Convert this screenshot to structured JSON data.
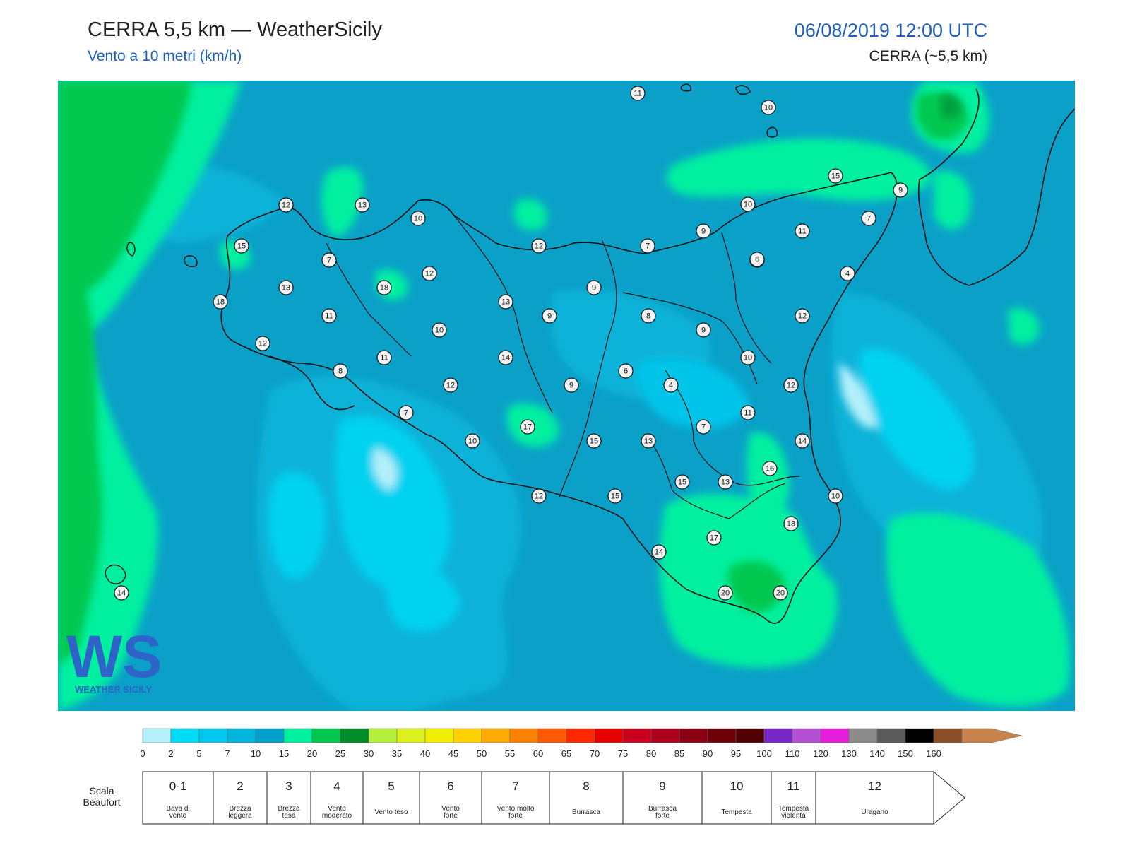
{
  "header": {
    "title": "CERRA 5,5 km — WeatherSicily",
    "subtitle": "Vento a 10 metri (km/h)",
    "datetime": "06/08/2019 12:00 UTC",
    "model": "CERRA (~5,5 km)"
  },
  "logo": {
    "text": "WS",
    "brand": "WEATHER SICILY"
  },
  "colors": {
    "sea_background": "#0aa0c8",
    "c_2_5": "#00d2f0",
    "c_5_7": "#00c4e8",
    "c_7_10": "#08b2d8",
    "c_10_15": "#0aa0c8",
    "c_15_20": "#00f0a0",
    "c_20_25": "#00c850",
    "c_25_30": "#00a03c",
    "coast": "#111111"
  },
  "stations": [
    {
      "value": "11"
    },
    {
      "value": "10"
    },
    {
      "value": "15"
    },
    {
      "value": "9"
    },
    {
      "value": "7"
    },
    {
      "value": "10"
    },
    {
      "value": "13"
    },
    {
      "value": "12"
    },
    {
      "value": "10"
    },
    {
      "value": "9"
    },
    {
      "value": "11"
    },
    {
      "value": "7"
    },
    {
      "value": "15"
    },
    {
      "value": "7"
    },
    {
      "value": "11"
    },
    {
      "value": "12"
    },
    {
      "value": "4"
    },
    {
      "value": "6"
    },
    {
      "value": "13"
    },
    {
      "value": "18"
    },
    {
      "value": "12"
    },
    {
      "value": "9"
    },
    {
      "value": "13"
    },
    {
      "value": "9"
    },
    {
      "value": "8"
    },
    {
      "value": "12"
    },
    {
      "value": "18"
    },
    {
      "value": "11"
    },
    {
      "value": "10"
    },
    {
      "value": "9"
    },
    {
      "value": "12"
    },
    {
      "value": "11"
    },
    {
      "value": "14"
    },
    {
      "value": "6"
    },
    {
      "value": "10"
    },
    {
      "value": "8"
    },
    {
      "value": "12"
    },
    {
      "value": "9"
    },
    {
      "value": "4"
    },
    {
      "value": "12"
    },
    {
      "value": "7"
    },
    {
      "value": "11"
    },
    {
      "value": "17"
    },
    {
      "value": "7"
    },
    {
      "value": "10"
    },
    {
      "value": "15"
    },
    {
      "value": "13"
    },
    {
      "value": "14"
    },
    {
      "value": "16"
    },
    {
      "value": "12"
    },
    {
      "value": "15"
    },
    {
      "value": "15"
    },
    {
      "value": "13"
    },
    {
      "value": "10"
    },
    {
      "value": "18"
    },
    {
      "value": "17"
    },
    {
      "value": "14"
    },
    {
      "value": "14"
    },
    {
      "value": "20"
    },
    {
      "value": "20"
    }
  ],
  "scale": {
    "ticks": [
      "0",
      "2",
      "5",
      "7",
      "10",
      "15",
      "20",
      "25",
      "30",
      "35",
      "40",
      "45",
      "50",
      "55",
      "60",
      "65",
      "70",
      "75",
      "80",
      "85",
      "90",
      "95",
      "100",
      "110",
      "120",
      "130",
      "140",
      "150",
      "160"
    ],
    "colors": [
      "#b4f0fa",
      "#00dcf5",
      "#00c8ee",
      "#00b4dc",
      "#00a0c8",
      "#00f0a0",
      "#00c850",
      "#008c28",
      "#b4f03c",
      "#dcf01e",
      "#f0f000",
      "#ffd200",
      "#ffaa00",
      "#ff8200",
      "#ff5a00",
      "#ff2800",
      "#e60000",
      "#c8001e",
      "#aa001e",
      "#8c0014",
      "#6e000a",
      "#500000",
      "#7828c8",
      "#b450d2",
      "#e61edc",
      "#8c8c8c",
      "#5a5a5a",
      "#000000",
      "#8c5028",
      "#c8824b"
    ],
    "beaufort_title": "Scala Beaufort",
    "beaufort": [
      {
        "num": "0-1",
        "desc": [
          "Bava di",
          "vento"
        ]
      },
      {
        "num": "2",
        "desc": [
          "Brezza",
          "leggera"
        ]
      },
      {
        "num": "3",
        "desc": [
          "Brezza",
          "tesa"
        ]
      },
      {
        "num": "4",
        "desc": [
          "Vento",
          "moderato"
        ]
      },
      {
        "num": "5",
        "desc": [
          "Vento teso"
        ]
      },
      {
        "num": "6",
        "desc": [
          "Vento",
          "forte"
        ]
      },
      {
        "num": "7",
        "desc": [
          "Vento molto",
          "forte"
        ]
      },
      {
        "num": "8",
        "desc": [
          "Burrasca"
        ]
      },
      {
        "num": "9",
        "desc": [
          "Burrasca",
          "forte"
        ]
      },
      {
        "num": "10",
        "desc": [
          "Tempesta"
        ]
      },
      {
        "num": "11",
        "desc": [
          "Tempesta",
          "violenta"
        ]
      },
      {
        "num": "12",
        "desc": [
          "Uragano"
        ]
      }
    ]
  }
}
